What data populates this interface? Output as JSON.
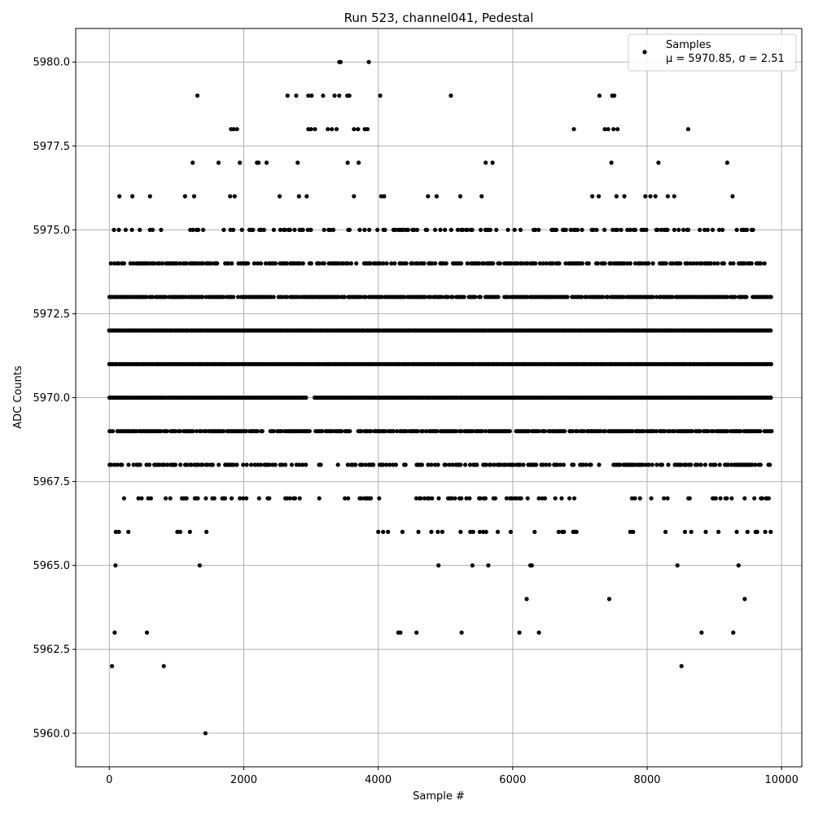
{
  "chart_data": {
    "type": "scatter",
    "title": "Run 523, channel041, Pedestal",
    "xlabel": "Sample #",
    "ylabel": "ADC Counts",
    "xlim": [
      -500,
      10300
    ],
    "ylim": [
      5959,
      5981
    ],
    "xticks": [
      0,
      2000,
      4000,
      6000,
      8000,
      10000
    ],
    "xtick_labels": [
      "0",
      "2000",
      "4000",
      "6000",
      "8000",
      "10000"
    ],
    "yticks": [
      5960.0,
      5962.5,
      5965.0,
      5967.5,
      5970.0,
      5972.5,
      5975.0,
      5977.5,
      5980.0
    ],
    "ytick_labels": [
      "5960.0",
      "5962.5",
      "5965.0",
      "5967.5",
      "5970.0",
      "5972.5",
      "5975.0",
      "5977.5",
      "5980.0"
    ],
    "grid": true,
    "legend_position": "top-right",
    "marker_color": "#000000",
    "series": [
      {
        "name": "Samples",
        "stats_label": "μ = 5970.85, σ = 2.51",
        "n_samples": 9850,
        "mean": 5970.85,
        "std": 2.51,
        "points": [
          [
            1430,
            5960
          ],
          [
            40,
            5962
          ],
          [
            810,
            5962
          ],
          [
            8510,
            5962
          ],
          [
            80,
            5963
          ],
          [
            560,
            5963
          ],
          [
            4300,
            5963
          ],
          [
            4330,
            5963
          ],
          [
            4570,
            5963
          ],
          [
            5240,
            5963
          ],
          [
            6100,
            5963
          ],
          [
            6390,
            5963
          ],
          [
            8810,
            5963
          ],
          [
            9280,
            5963
          ],
          [
            3420,
            5980
          ],
          [
            3440,
            5980
          ],
          [
            3860,
            5980
          ],
          [
            1310,
            5979
          ],
          [
            2650,
            5979
          ],
          [
            2780,
            5979
          ],
          [
            2960,
            5979
          ],
          [
            3010,
            5979
          ],
          [
            3180,
            5979
          ],
          [
            3350,
            5979
          ],
          [
            3420,
            5979
          ],
          [
            3540,
            5979
          ],
          [
            3570,
            5979
          ],
          [
            4030,
            5979
          ],
          [
            5080,
            5979
          ],
          [
            7290,
            5979
          ],
          [
            7480,
            5979
          ],
          [
            7510,
            5979
          ],
          [
            1810,
            5978
          ],
          [
            1850,
            5978
          ],
          [
            1900,
            5978
          ],
          [
            2960,
            5978
          ],
          [
            3000,
            5978
          ],
          [
            3060,
            5978
          ],
          [
            3250,
            5978
          ],
          [
            3310,
            5978
          ],
          [
            3380,
            5978
          ],
          [
            3640,
            5978
          ],
          [
            3700,
            5978
          ],
          [
            3800,
            5978
          ],
          [
            3840,
            5978
          ],
          [
            6910,
            5978
          ],
          [
            7370,
            5978
          ],
          [
            7420,
            5978
          ],
          [
            7500,
            5978
          ],
          [
            7560,
            5978
          ],
          [
            8610,
            5978
          ]
        ],
        "levels": [
          {
            "y": 5964,
            "density": 0.012,
            "ranges": [
              [
                80,
                1000
              ],
              [
                1600,
                1700
              ],
              [
                2600,
                2700
              ],
              [
                4000,
                9800
              ]
            ]
          },
          {
            "y": 5965,
            "density": 0.03,
            "ranges": [
              [
                0,
                1900
              ],
              [
                2600,
                2700
              ],
              [
                4100,
                7300
              ],
              [
                7800,
                9800
              ]
            ]
          },
          {
            "y": 5966,
            "density": 0.1,
            "ranges": [
              [
                0,
                2300
              ],
              [
                2600,
                2700
              ],
              [
                3500,
                3600
              ],
              [
                3950,
                7200
              ],
              [
                7600,
                9850
              ]
            ]
          },
          {
            "y": 5967,
            "density": 0.28,
            "ranges": [
              [
                0,
                2850
              ],
              [
                3100,
                3150
              ],
              [
                3500,
                3550
              ],
              [
                3700,
                7300
              ],
              [
                7700,
                9850
              ]
            ]
          },
          {
            "y": 5968,
            "density": 0.6,
            "ranges": [
              [
                0,
                2950
              ],
              [
                3100,
                3150
              ],
              [
                3400,
                7300
              ],
              [
                7500,
                9850
              ]
            ]
          },
          {
            "y": 5969,
            "density": 0.85,
            "ranges": [
              [
                0,
                2300
              ],
              [
                2400,
                2980
              ],
              [
                3050,
                3600
              ],
              [
                3700,
                7300
              ],
              [
                7350,
                9850
              ]
            ]
          },
          {
            "y": 5970,
            "density": 1.0,
            "ranges": [
              [
                0,
                2950
              ],
              [
                3050,
                9850
              ]
            ]
          },
          {
            "y": 5971,
            "density": 1.0,
            "ranges": [
              [
                0,
                9850
              ]
            ]
          },
          {
            "y": 5972,
            "density": 1.0,
            "ranges": [
              [
                0,
                9850
              ]
            ]
          },
          {
            "y": 5973,
            "density": 0.85,
            "ranges": [
              [
                0,
                9850
              ]
            ]
          },
          {
            "y": 5974,
            "density": 0.6,
            "ranges": [
              [
                0,
                9750
              ]
            ]
          },
          {
            "y": 5975,
            "density": 0.35,
            "ranges": [
              [
                0,
                9600
              ]
            ]
          },
          {
            "y": 5976,
            "density": 0.12,
            "ranges": [
              [
                150,
                650
              ],
              [
                1050,
                2000
              ],
              [
                2050,
                4300
              ],
              [
                4600,
                5700
              ],
              [
                6800,
                8500
              ],
              [
                9100,
                9500
              ]
            ]
          },
          {
            "y": 5977,
            "density": 0.035,
            "ranges": [
              [
                200,
                400
              ],
              [
                1100,
                2000
              ],
              [
                2200,
                3900
              ],
              [
                4450,
                4500
              ],
              [
                5000,
                5700
              ],
              [
                6900,
                6950
              ],
              [
                7300,
                7650
              ],
              [
                8100,
                8400
              ],
              [
                8850,
                9300
              ]
            ]
          }
        ]
      }
    ]
  }
}
